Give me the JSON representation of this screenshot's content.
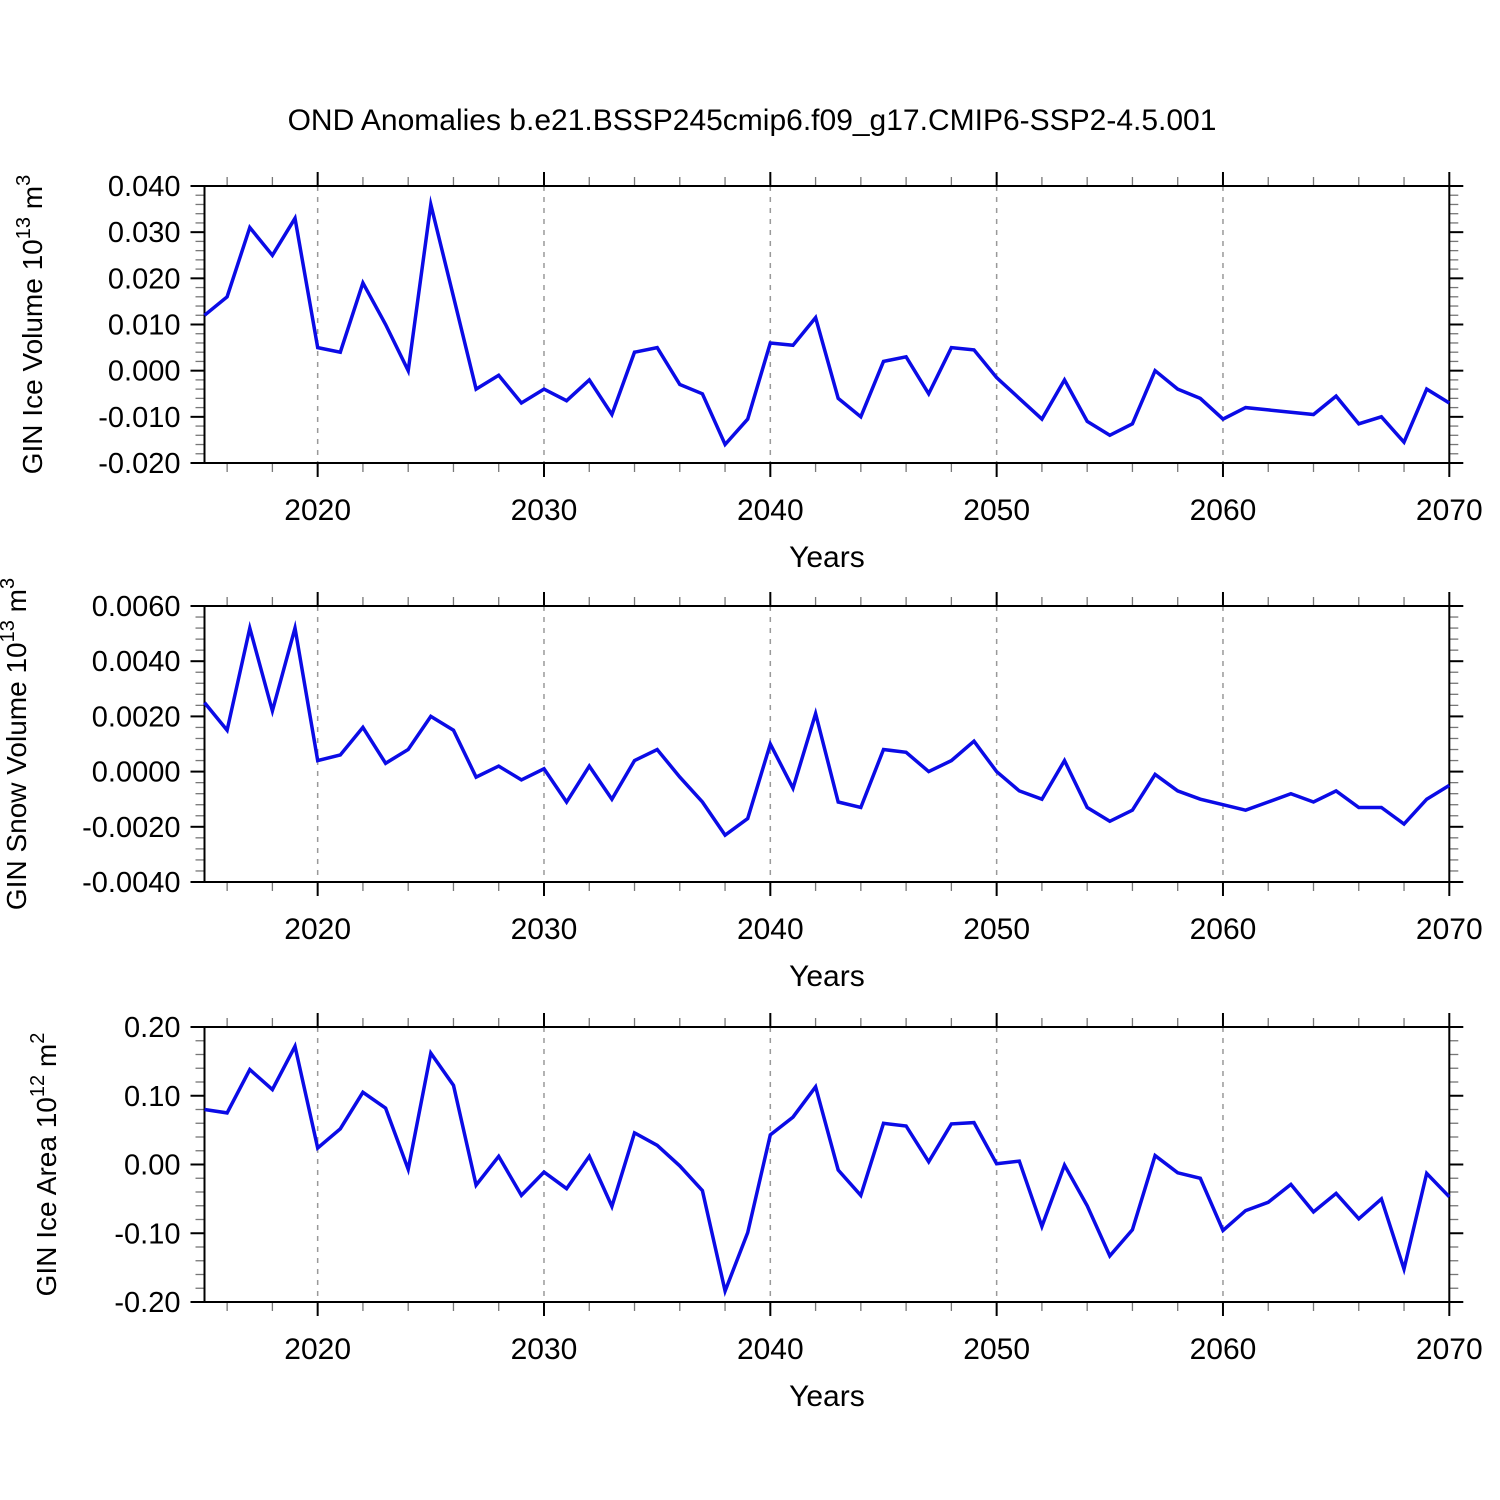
{
  "title": "OND Anomalies b.e21.BSSP245cmip6.f09_g17.CMIP6-SSP2-4.5.001",
  "line_color": "#0b0be6",
  "grid_color": "#999999",
  "axis_color": "#000000",
  "x_axis": {
    "label": "Years",
    "range": [
      2015,
      2070
    ],
    "major_ticks": [
      2020,
      2030,
      2040,
      2050,
      2060,
      2070
    ],
    "major_tick_labels": [
      "2020",
      "2030",
      "2040",
      "2050",
      "2060",
      "2070"
    ],
    "minor_tick_step": 2,
    "grid_years": [
      2020,
      2030,
      2040,
      2050,
      2060
    ]
  },
  "chart_data": [
    {
      "type": "line",
      "id": "gin-ice-volume",
      "ylabel": "GIN Ice Volume 10^13 m^3",
      "ylabel_parts": [
        {
          "text": "GIN Ice Volume 10"
        },
        {
          "text": "13",
          "sup": true
        },
        {
          "text": " m"
        },
        {
          "text": "3",
          "sup": true
        }
      ],
      "ylim": [
        -0.02,
        0.04
      ],
      "ytick_values": [
        0.04,
        0.03,
        0.02,
        0.01,
        0.0,
        -0.01,
        -0.02
      ],
      "ytick_labels": [
        "0.040",
        "0.030",
        "0.020",
        "0.010",
        "0.000",
        "-0.010",
        "-0.020"
      ],
      "y_minor_step": 0.002,
      "x": [
        2015,
        2016,
        2017,
        2018,
        2019,
        2020,
        2021,
        2022,
        2023,
        2024,
        2025,
        2026,
        2027,
        2028,
        2029,
        2030,
        2031,
        2032,
        2033,
        2034,
        2035,
        2036,
        2037,
        2038,
        2039,
        2040,
        2041,
        2042,
        2043,
        2044,
        2045,
        2046,
        2047,
        2048,
        2049,
        2050,
        2051,
        2052,
        2053,
        2054,
        2055,
        2056,
        2057,
        2058,
        2059,
        2060,
        2061,
        2062,
        2063,
        2064,
        2065,
        2066,
        2067,
        2068,
        2069,
        2070
      ],
      "values": [
        0.012,
        0.016,
        0.031,
        0.025,
        0.033,
        0.005,
        0.004,
        0.019,
        0.01,
        0.0,
        0.036,
        0.016,
        -0.004,
        -0.001,
        -0.007,
        -0.004,
        -0.0065,
        -0.002,
        -0.0095,
        0.004,
        0.005,
        -0.003,
        -0.005,
        -0.016,
        -0.0105,
        0.006,
        0.0055,
        0.0115,
        -0.006,
        -0.01,
        0.002,
        0.003,
        -0.005,
        0.005,
        0.0045,
        -0.0015,
        -0.006,
        -0.0105,
        -0.002,
        -0.011,
        -0.014,
        -0.0115,
        0.0,
        -0.004,
        -0.006,
        -0.0105,
        -0.008,
        -0.0085,
        -0.009,
        -0.0095,
        -0.0055,
        -0.0115,
        -0.01,
        -0.0155,
        -0.004,
        -0.007
      ]
    },
    {
      "type": "line",
      "id": "gin-snow-volume",
      "ylabel": "GIN Snow Volume 10^13 m^3",
      "ylabel_parts": [
        {
          "text": "GIN Snow Volume 10"
        },
        {
          "text": "13",
          "sup": true
        },
        {
          "text": " m"
        },
        {
          "text": "3",
          "sup": true
        }
      ],
      "ylim": [
        -0.004,
        0.006
      ],
      "ytick_values": [
        0.006,
        0.004,
        0.002,
        0.0,
        -0.002,
        -0.004
      ],
      "ytick_labels": [
        "0.0060",
        "0.0040",
        "0.0020",
        "0.0000",
        "-0.0020",
        "-0.0040"
      ],
      "y_minor_step": 0.0004,
      "x": [
        2015,
        2016,
        2017,
        2018,
        2019,
        2020,
        2021,
        2022,
        2023,
        2024,
        2025,
        2026,
        2027,
        2028,
        2029,
        2030,
        2031,
        2032,
        2033,
        2034,
        2035,
        2036,
        2037,
        2038,
        2039,
        2040,
        2041,
        2042,
        2043,
        2044,
        2045,
        2046,
        2047,
        2048,
        2049,
        2050,
        2051,
        2052,
        2053,
        2054,
        2055,
        2056,
        2057,
        2058,
        2059,
        2060,
        2061,
        2062,
        2063,
        2064,
        2065,
        2066,
        2067,
        2068,
        2069,
        2070
      ],
      "values": [
        0.0025,
        0.0015,
        0.0052,
        0.0022,
        0.0052,
        0.0004,
        0.0006,
        0.0016,
        0.0003,
        0.0008,
        0.002,
        0.0015,
        -0.0002,
        0.0002,
        -0.0003,
        0.0001,
        -0.0011,
        0.0002,
        -0.001,
        0.0004,
        0.0008,
        -0.0002,
        -0.0011,
        -0.0023,
        -0.0017,
        0.001,
        -0.0006,
        0.0021,
        -0.0011,
        -0.0013,
        0.0008,
        0.0007,
        0.0,
        0.0004,
        0.0011,
        0.0,
        -0.0007,
        -0.001,
        0.0004,
        -0.0013,
        -0.0018,
        -0.0014,
        -0.0001,
        -0.0007,
        -0.001,
        -0.0012,
        -0.0014,
        -0.0011,
        -0.0008,
        -0.0011,
        -0.0007,
        -0.0013,
        -0.0013,
        -0.0019,
        -0.001,
        -0.0005
      ]
    },
    {
      "type": "line",
      "id": "gin-ice-area",
      "ylabel": "GIN Ice Area 10^12 m^2",
      "ylabel_parts": [
        {
          "text": "GIN Ice Area 10"
        },
        {
          "text": "12",
          "sup": true
        },
        {
          "text": " m"
        },
        {
          "text": "2",
          "sup": true
        }
      ],
      "ylim": [
        -0.2,
        0.2
      ],
      "ytick_values": [
        0.2,
        0.1,
        0.0,
        -0.1,
        -0.2
      ],
      "ytick_labels": [
        "0.20",
        "0.10",
        "0.00",
        "-0.10",
        "-0.20"
      ],
      "y_minor_step": 0.02,
      "x": [
        2015,
        2016,
        2017,
        2018,
        2019,
        2020,
        2021,
        2022,
        2023,
        2024,
        2025,
        2026,
        2027,
        2028,
        2029,
        2030,
        2031,
        2032,
        2033,
        2034,
        2035,
        2036,
        2037,
        2038,
        2039,
        2040,
        2041,
        2042,
        2043,
        2044,
        2045,
        2046,
        2047,
        2048,
        2049,
        2050,
        2051,
        2052,
        2053,
        2054,
        2055,
        2056,
        2057,
        2058,
        2059,
        2060,
        2061,
        2062,
        2063,
        2064,
        2065,
        2066,
        2067,
        2068,
        2069,
        2070
      ],
      "values": [
        0.08,
        0.075,
        0.138,
        0.109,
        0.172,
        0.024,
        0.052,
        0.105,
        0.082,
        -0.007,
        0.162,
        0.115,
        -0.03,
        0.012,
        -0.045,
        -0.011,
        -0.035,
        0.012,
        -0.061,
        0.046,
        0.028,
        -0.002,
        -0.038,
        -0.184,
        -0.099,
        0.043,
        0.069,
        0.113,
        -0.008,
        -0.045,
        0.06,
        0.056,
        0.004,
        0.059,
        0.061,
        0.001,
        0.005,
        -0.09,
        -0.001,
        -0.06,
        -0.133,
        -0.095,
        0.013,
        -0.012,
        -0.02,
        -0.096,
        -0.067,
        -0.055,
        -0.029,
        -0.069,
        -0.042,
        -0.079,
        -0.05,
        -0.152,
        -0.013,
        -0.047
      ]
    }
  ]
}
